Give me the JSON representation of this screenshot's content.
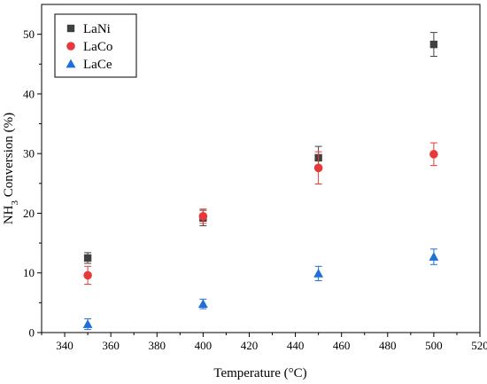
{
  "chart_data": {
    "type": "scatter",
    "xlabel": "Temperature (°C)",
    "ylabel_parts": [
      "NH",
      "3",
      " Conversion (%)"
    ],
    "xlim": [
      330,
      520
    ],
    "ylim": [
      0,
      55
    ],
    "x_ticks": [
      340,
      360,
      380,
      400,
      420,
      440,
      460,
      480,
      500,
      520
    ],
    "y_ticks": [
      0,
      10,
      20,
      30,
      40,
      50
    ],
    "legend_position": "top-left",
    "grid": false,
    "series": [
      {
        "name": "LaNi",
        "marker": "square",
        "color": "#404040",
        "points": [
          {
            "x": 350,
            "y": 12.5,
            "err": 0.9
          },
          {
            "x": 400,
            "y": 19.2,
            "err": 1.3
          },
          {
            "x": 450,
            "y": 29.3,
            "err": 1.9
          },
          {
            "x": 500,
            "y": 48.3,
            "err": 2.0
          }
        ]
      },
      {
        "name": "LaCo",
        "marker": "circle",
        "color": "#e8393a",
        "points": [
          {
            "x": 350,
            "y": 9.6,
            "err": 1.5
          },
          {
            "x": 400,
            "y": 19.5,
            "err": 1.2
          },
          {
            "x": 450,
            "y": 27.6,
            "err": 2.7
          },
          {
            "x": 500,
            "y": 29.9,
            "err": 1.9
          }
        ]
      },
      {
        "name": "LaCe",
        "marker": "triangle",
        "color": "#1f70d6",
        "points": [
          {
            "x": 350,
            "y": 1.4,
            "err": 0.9
          },
          {
            "x": 400,
            "y": 4.8,
            "err": 0.8
          },
          {
            "x": 450,
            "y": 9.9,
            "err": 1.2
          },
          {
            "x": 500,
            "y": 12.7,
            "err": 1.3
          }
        ]
      }
    ]
  }
}
